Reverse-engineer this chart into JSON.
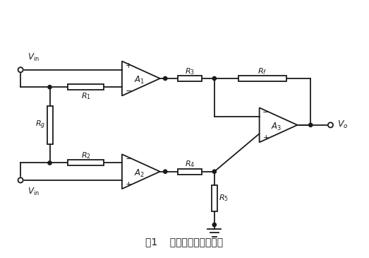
{
  "title": "图1    仪表放大器典型结构",
  "bg_color": "#ffffff",
  "line_color": "#1a1a1a",
  "line_width": 1.3,
  "fig_width": 5.23,
  "fig_height": 3.65,
  "dpi": 100,
  "xlim": [
    0,
    5.5
  ],
  "ylim": [
    0,
    3.6
  ]
}
